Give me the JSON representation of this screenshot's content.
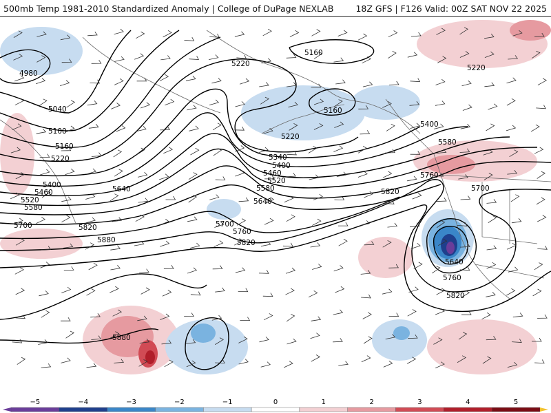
{
  "header": {
    "title": "500mb Temp 1981-2010 Standardized Anomaly | College of DuPage NEXLAB",
    "run_info": "18Z GFS | F126 Valid: 00Z SAT NOV 22 2025"
  },
  "map": {
    "contour_labels": [
      {
        "id": "c4980",
        "text": "4980"
      },
      {
        "id": "c5040",
        "text": "5040"
      },
      {
        "id": "c5100",
        "text": "5100"
      },
      {
        "id": "c5160a",
        "text": "5160"
      },
      {
        "id": "c5160b",
        "text": "5160"
      },
      {
        "id": "c5160c",
        "text": "5160"
      },
      {
        "id": "c5220a",
        "text": "5220"
      },
      {
        "id": "c5220b",
        "text": "5220"
      },
      {
        "id": "c5220c",
        "text": "5220"
      },
      {
        "id": "c5220d",
        "text": "5220"
      },
      {
        "id": "c5340",
        "text": "5340"
      },
      {
        "id": "c5400a",
        "text": "5400"
      },
      {
        "id": "c5400b",
        "text": "5400"
      },
      {
        "id": "c5400c",
        "text": "5400"
      },
      {
        "id": "c5460a",
        "text": "5460"
      },
      {
        "id": "c5460b",
        "text": "5460"
      },
      {
        "id": "c5520a",
        "text": "5520"
      },
      {
        "id": "c5520b",
        "text": "5520"
      },
      {
        "id": "c5580a",
        "text": "5580"
      },
      {
        "id": "c5580b",
        "text": "5580"
      },
      {
        "id": "c5580c",
        "text": "5580"
      },
      {
        "id": "c5640a",
        "text": "5640"
      },
      {
        "id": "c5640b",
        "text": "5640"
      },
      {
        "id": "c5640c",
        "text": "5640"
      },
      {
        "id": "c5700a",
        "text": "5700"
      },
      {
        "id": "c5700b",
        "text": "5700"
      },
      {
        "id": "c5700c",
        "text": "5700"
      },
      {
        "id": "c5760a",
        "text": "5760"
      },
      {
        "id": "c5760b",
        "text": "5760"
      },
      {
        "id": "c5760c",
        "text": "5760"
      },
      {
        "id": "c5820a",
        "text": "5820"
      },
      {
        "id": "c5820b",
        "text": "5820"
      },
      {
        "id": "c5820c",
        "text": "5820"
      },
      {
        "id": "c5820d",
        "text": "5820"
      },
      {
        "id": "c5880a",
        "text": "5880"
      },
      {
        "id": "c5880b",
        "text": "5880"
      }
    ]
  },
  "colorbar": {
    "tick_labels": [
      "−5",
      "−4",
      "−3",
      "−2",
      "−1",
      "0",
      "1",
      "2",
      "3",
      "4",
      "5"
    ],
    "min": -5.5,
    "max": 5.5,
    "colors": {
      "n5": "#6a3d9a",
      "n4": "#1f3f8c",
      "n3": "#3a86c8",
      "n2": "#7ab3e0",
      "n1": "#c7dcf0",
      "p1": "#f3d0d3",
      "p2": "#e69aa0",
      "p3": "#d14b55",
      "p4": "#b01e2a",
      "p5": "#7a0c14",
      "extreme": "#f2c230"
    }
  }
}
